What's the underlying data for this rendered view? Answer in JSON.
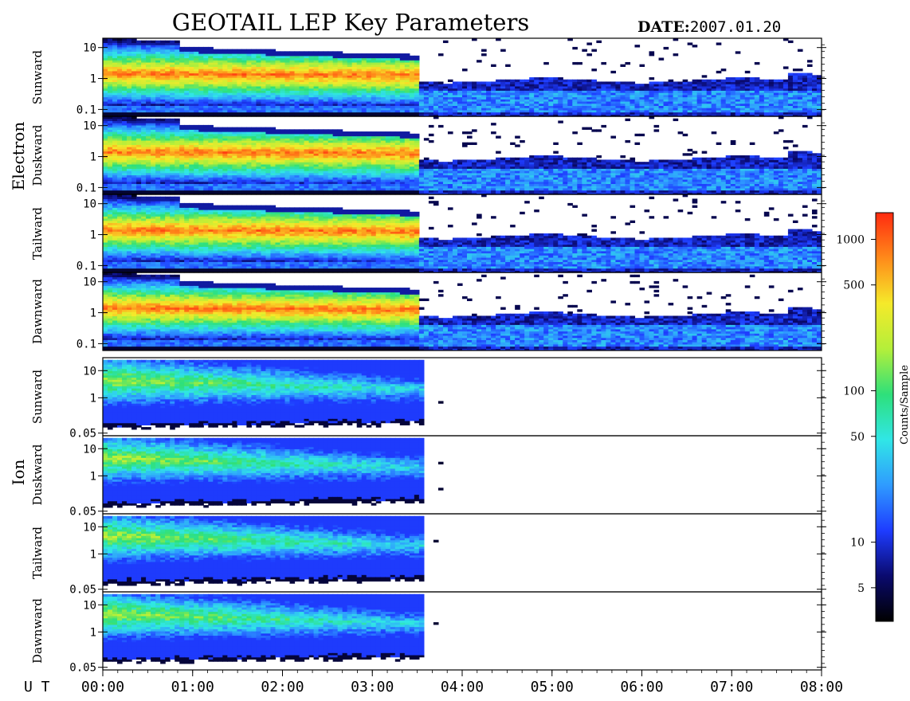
{
  "title": "GEOTAIL LEP Key Parameters",
  "date_label": "DATE:",
  "date_value": "2007.01.20",
  "ut_label": "U T",
  "colorbar": {
    "label": "Counts/Sample",
    "scale": "log",
    "range": [
      3,
      1500
    ],
    "ticks": [
      {
        "value": 5,
        "label": "5"
      },
      {
        "value": 10,
        "label": "10"
      },
      {
        "value": 50,
        "label": "50"
      },
      {
        "value": 100,
        "label": "100"
      },
      {
        "value": 500,
        "label": "500"
      },
      {
        "value": 1000,
        "label": "1000"
      }
    ],
    "colors": [
      "#000000",
      "#0a0a6e",
      "#1e3cff",
      "#2f9bff",
      "#30e6e6",
      "#2ee07a",
      "#b4ef3a",
      "#f5ea2a",
      "#ff8a1a",
      "#ff2a10"
    ]
  },
  "chart_data": {
    "type": "heatmap",
    "x_axis": {
      "unit": "UT",
      "range": [
        "00:00",
        "08:00"
      ],
      "ticks": [
        "00:00",
        "01:00",
        "02:00",
        "03:00",
        "04:00",
        "05:00",
        "06:00",
        "07:00",
        "08:00"
      ]
    },
    "species": [
      {
        "name": "Electron",
        "y_scale": "log",
        "y_range": [
          0.06,
          20
        ],
        "y_ticks": [
          {
            "value": 0.1,
            "label": "0.1"
          },
          {
            "value": 1,
            "label": "1"
          },
          {
            "value": 10,
            "label": "10"
          }
        ],
        "panels": [
          "Sunward",
          "Duskward",
          "Tailward",
          "Dawnward"
        ]
      },
      {
        "name": "Ion",
        "y_scale": "log",
        "y_range": [
          0.04,
          30
        ],
        "y_ticks": [
          {
            "value": 0.05,
            "label": "0.05"
          },
          {
            "value": 1,
            "label": "1"
          },
          {
            "value": 10,
            "label": "10"
          }
        ],
        "panels": [
          "Sunward",
          "Duskward",
          "Tailward",
          "Dawnward"
        ]
      }
    ]
  }
}
